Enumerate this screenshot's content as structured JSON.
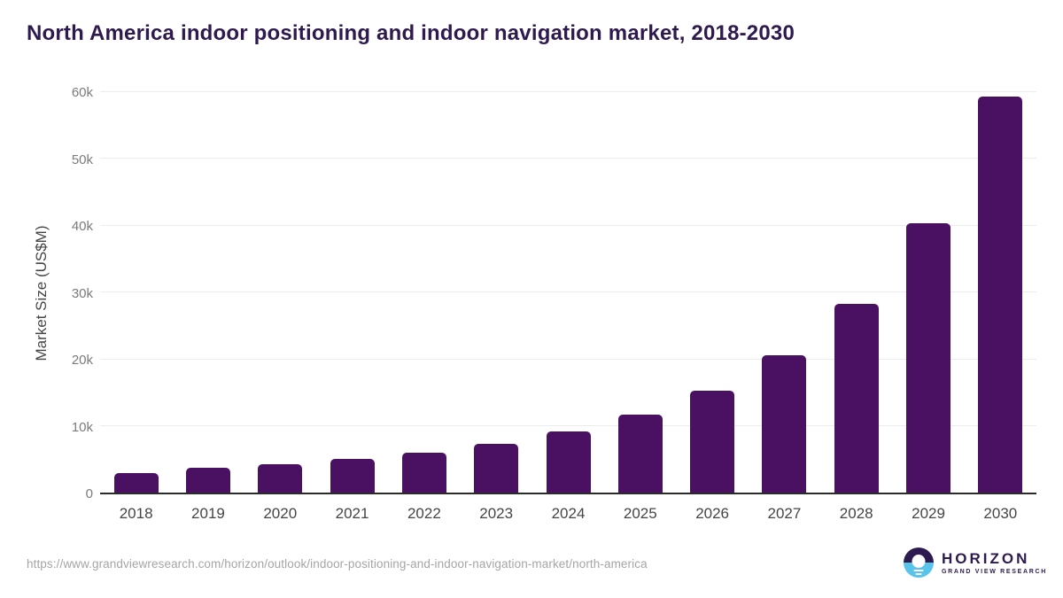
{
  "title": "North America indoor positioning and indoor navigation market, 2018-2030",
  "chart_data": {
    "type": "bar",
    "title": "North America indoor positioning and indoor navigation market, 2018-2030",
    "categories": [
      "2018",
      "2019",
      "2020",
      "2021",
      "2022",
      "2023",
      "2024",
      "2025",
      "2026",
      "2027",
      "2028",
      "2029",
      "2030"
    ],
    "values": [
      2900,
      3650,
      4300,
      5000,
      5950,
      7300,
      9150,
      11650,
      15250,
      20500,
      28200,
      40300,
      59200
    ],
    "xlabel": "",
    "ylabel": "Market Size (US$M)",
    "ylim": [
      0,
      60000
    ],
    "yticks": [
      {
        "label": "0",
        "value": 0
      },
      {
        "label": "10k",
        "value": 10000
      },
      {
        "label": "20k",
        "value": 20000
      },
      {
        "label": "30k",
        "value": 30000
      },
      {
        "label": "40k",
        "value": 40000
      },
      {
        "label": "50k",
        "value": 50000
      },
      {
        "label": "60k",
        "value": 60000
      }
    ],
    "grid": true,
    "legend": false,
    "bar_color": "#4a1163"
  },
  "footer": {
    "source_url": "https://www.grandviewresearch.com/horizon/outlook/indoor-positioning-and-indoor-navigation-market/north-america",
    "logo": {
      "name": "HORIZON",
      "subtext": "GRAND VIEW RESEARCH"
    }
  },
  "colors": {
    "bar": "#4a1163",
    "title_text": "#2e1a4f",
    "axis_line": "#2b2b2b",
    "gridline": "#ececec",
    "ytick_text": "#7b7b7b",
    "xtick_text": "#454545",
    "source_text": "#a5a5a5",
    "logo_purple": "#2d1a4e",
    "logo_blue": "#58c4ea"
  }
}
